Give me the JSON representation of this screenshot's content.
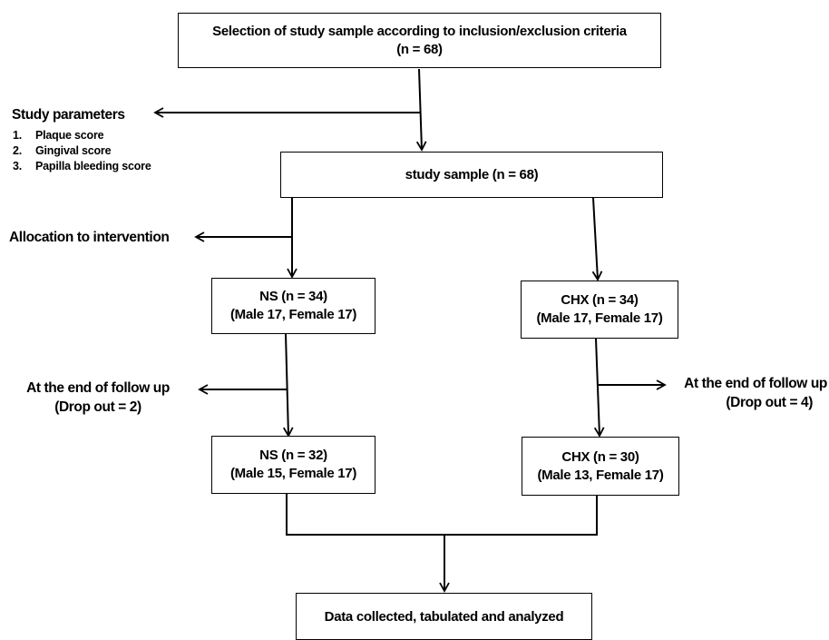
{
  "boxes": {
    "selection": {
      "line1": "Selection of study sample according to inclusion/exclusion criteria",
      "line2": "(n = 68)"
    },
    "study_sample": {
      "line1": "study sample (n = 68)"
    },
    "ns_allocated": {
      "line1": "NS (n = 34)",
      "line2": "(Male 17, Female 17)"
    },
    "chx_allocated": {
      "line1": "CHX (n = 34)",
      "line2": "(Male 17, Female 17)"
    },
    "ns_followup": {
      "line1": "NS (n = 32)",
      "line2": "(Male 15, Female 17)"
    },
    "chx_followup": {
      "line1": "CHX (n = 30)",
      "line2": "(Male 13, Female 17)"
    },
    "data": {
      "line1": "Data collected, tabulated and analyzed"
    }
  },
  "side_labels": {
    "study_parameters": {
      "title": "Study parameters",
      "items": [
        {
          "num": "1.",
          "text": "Plaque score"
        },
        {
          "num": "2.",
          "text": "Gingival score"
        },
        {
          "num": "3.",
          "text": "Papilla bleeding score"
        }
      ]
    },
    "allocation": "Allocation to intervention",
    "followup_left": {
      "line1": "At the end of follow up",
      "line2": "(Drop out = 2)"
    },
    "followup_right": {
      "line1": "At the end of follow up",
      "line2": "(Drop out = 4)"
    }
  }
}
